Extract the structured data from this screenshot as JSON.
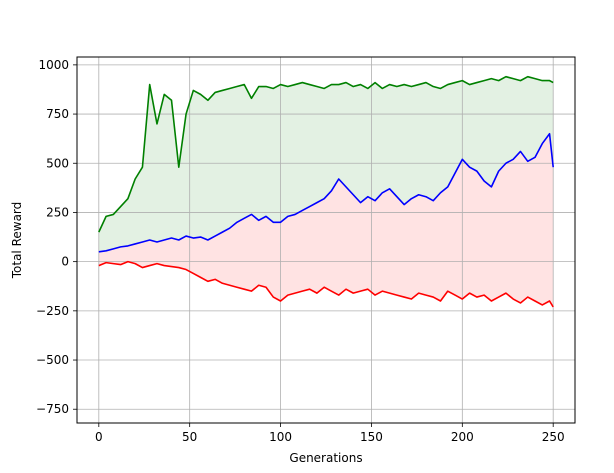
{
  "chart_data": {
    "type": "line",
    "title": "",
    "xlabel": "Generations",
    "ylabel": "Total Reward",
    "xlim": [
      -12,
      262
    ],
    "ylim": [
      -820,
      1040
    ],
    "xticks": [
      0,
      50,
      100,
      150,
      200,
      250
    ],
    "yticks": [
      -750,
      -500,
      -250,
      0,
      250,
      500,
      750,
      1000
    ],
    "xtick_labels": [
      "0",
      "50",
      "100",
      "150",
      "200",
      "250"
    ],
    "ytick_labels": [
      "−750",
      "−500",
      "−250",
      "0",
      "250",
      "500",
      "750",
      "1000"
    ],
    "grid": true,
    "legend": "none",
    "x": [
      0,
      4,
      8,
      12,
      16,
      20,
      24,
      28,
      32,
      36,
      40,
      44,
      48,
      52,
      56,
      60,
      64,
      68,
      72,
      76,
      80,
      84,
      88,
      92,
      96,
      100,
      104,
      108,
      112,
      116,
      120,
      124,
      128,
      132,
      136,
      140,
      144,
      148,
      152,
      156,
      160,
      164,
      168,
      172,
      176,
      180,
      184,
      188,
      192,
      196,
      200,
      204,
      208,
      212,
      216,
      220,
      224,
      228,
      232,
      236,
      240,
      244,
      248,
      250
    ],
    "series": [
      {
        "color": "#008000",
        "values": [
          150,
          230,
          240,
          280,
          320,
          420,
          480,
          900,
          700,
          850,
          820,
          480,
          750,
          870,
          850,
          820,
          860,
          870,
          880,
          890,
          900,
          830,
          890,
          890,
          880,
          900,
          890,
          900,
          910,
          900,
          890,
          880,
          900,
          900,
          910,
          890,
          900,
          880,
          910,
          880,
          900,
          890,
          900,
          890,
          900,
          910,
          890,
          880,
          900,
          910,
          920,
          900,
          910,
          920,
          930,
          920,
          940,
          930,
          920,
          940,
          930,
          920,
          920,
          910
        ]
      },
      {
        "color": "#0000ff",
        "values": [
          50,
          55,
          65,
          75,
          80,
          90,
          100,
          110,
          100,
          110,
          120,
          110,
          130,
          120,
          125,
          110,
          130,
          150,
          170,
          200,
          220,
          240,
          210,
          230,
          200,
          200,
          230,
          240,
          260,
          280,
          300,
          320,
          360,
          420,
          380,
          340,
          300,
          330,
          310,
          350,
          370,
          330,
          290,
          320,
          340,
          330,
          310,
          350,
          380,
          450,
          520,
          480,
          460,
          410,
          380,
          460,
          500,
          520,
          560,
          510,
          530,
          600,
          650,
          480
        ]
      },
      {
        "color": "#ff0000",
        "values": [
          -20,
          -5,
          -10,
          -15,
          0,
          -10,
          -30,
          -20,
          -10,
          -20,
          -25,
          -30,
          -40,
          -60,
          -80,
          -100,
          -90,
          -110,
          -120,
          -130,
          -140,
          -150,
          -120,
          -130,
          -180,
          -200,
          -170,
          -160,
          -150,
          -140,
          -160,
          -130,
          -150,
          -170,
          -140,
          -160,
          -150,
          -140,
          -170,
          -150,
          -160,
          -170,
          -180,
          -190,
          -160,
          -170,
          -180,
          -200,
          -150,
          -170,
          -190,
          -160,
          -180,
          -170,
          -200,
          -180,
          -160,
          -190,
          -210,
          -180,
          -200,
          -220,
          -200,
          -230
        ]
      }
    ]
  }
}
